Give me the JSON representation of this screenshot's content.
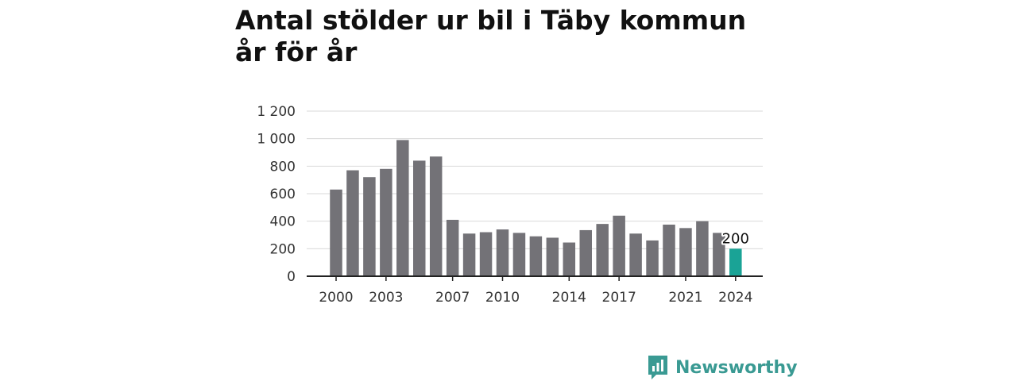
{
  "title": "Antal stölder ur bil i Täby kommun år för år",
  "brand": {
    "name": "Newsworthy",
    "icon": "newsworthy-logo-icon",
    "color": "#3a9a93"
  },
  "chart_data": {
    "type": "bar",
    "title": "Antal stölder ur bil i Täby kommun år för år",
    "xlabel": "",
    "ylabel": "",
    "categories": [
      "2000",
      "2001",
      "2002",
      "2003",
      "2004",
      "2005",
      "2006",
      "2007",
      "2008",
      "2009",
      "2010",
      "2011",
      "2012",
      "2013",
      "2014",
      "2015",
      "2016",
      "2017",
      "2018",
      "2019",
      "2020",
      "2021",
      "2022",
      "2023",
      "2024"
    ],
    "values": [
      630,
      770,
      720,
      780,
      990,
      840,
      870,
      410,
      310,
      320,
      340,
      315,
      290,
      280,
      245,
      335,
      380,
      440,
      310,
      260,
      375,
      350,
      400,
      315,
      200
    ],
    "x_tick_labels": [
      "2000",
      "2003",
      "2007",
      "2010",
      "2014",
      "2017",
      "2021",
      "2024"
    ],
    "y_ticks": [
      0,
      200,
      400,
      600,
      800,
      1000,
      1200
    ],
    "y_tick_labels": [
      "0",
      "200",
      "400",
      "600",
      "800",
      "1 000",
      "1 200"
    ],
    "ylim": [
      0,
      1200
    ],
    "grid": true,
    "bar_color": "#737277",
    "highlight_color": "#1aa396",
    "highlight_index": 24,
    "data_labels": [
      {
        "index": 24,
        "text": "200"
      }
    ]
  }
}
